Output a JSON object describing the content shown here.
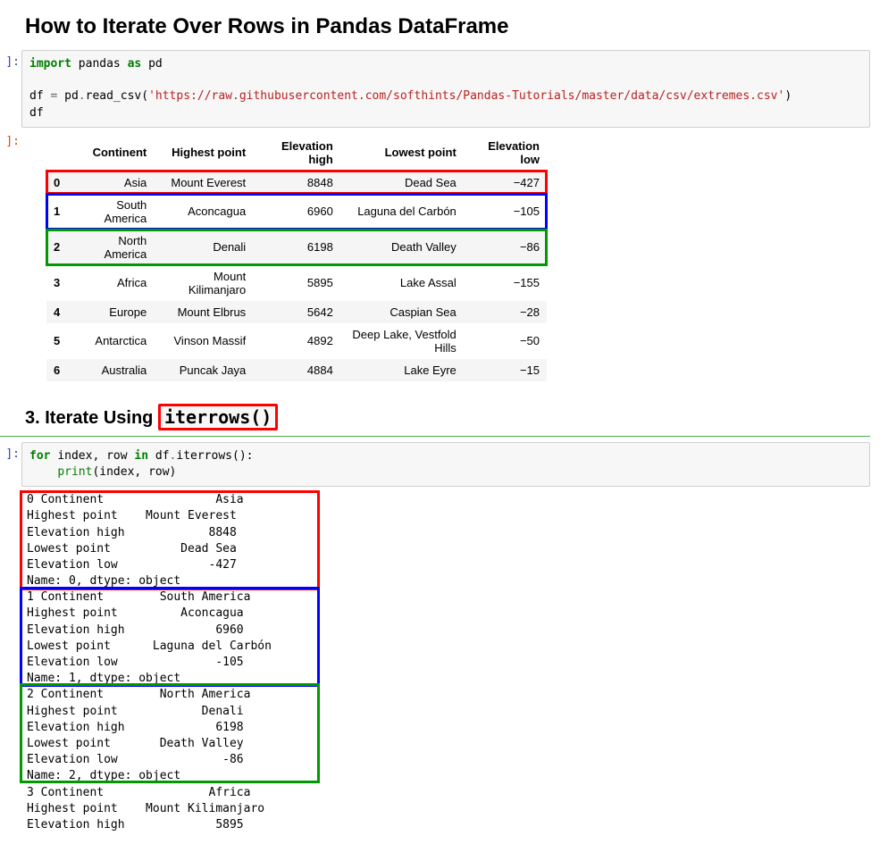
{
  "title": "How to Iterate Over Rows in Pandas DataFrame",
  "section2": {
    "prefix": "3. Iterate Using ",
    "code": "iterrows()"
  },
  "code1_tokens": [
    {
      "t": "import ",
      "c": "kw-import"
    },
    {
      "t": "pandas ",
      "c": ""
    },
    {
      "t": "as ",
      "c": "kw-as"
    },
    {
      "t": "pd",
      "c": ""
    },
    {
      "t": "\n\n",
      "c": ""
    },
    {
      "t": "df ",
      "c": ""
    },
    {
      "t": "= ",
      "c": "op"
    },
    {
      "t": "pd",
      "c": ""
    },
    {
      "t": ".",
      "c": "op"
    },
    {
      "t": "read_csv(",
      "c": ""
    },
    {
      "t": "'https://raw.githubusercontent.com/softhints/Pandas-Tutorials/master/data/csv/extremes.csv'",
      "c": "str"
    },
    {
      "t": ")",
      "c": ""
    },
    {
      "t": "\n",
      "c": ""
    },
    {
      "t": "df",
      "c": ""
    }
  ],
  "code2_tokens": [
    {
      "t": "for ",
      "c": "kw-for"
    },
    {
      "t": "index, row ",
      "c": ""
    },
    {
      "t": "in ",
      "c": "kw-in"
    },
    {
      "t": "df",
      "c": ""
    },
    {
      "t": ".",
      "c": "op"
    },
    {
      "t": "iterrows():",
      "c": ""
    },
    {
      "t": "\n",
      "c": ""
    },
    {
      "t": "    ",
      "c": ""
    },
    {
      "t": "print",
      "c": "func"
    },
    {
      "t": "(index, row)",
      "c": ""
    }
  ],
  "table": {
    "columns": [
      "Continent",
      "Highest point",
      "Elevation high",
      "Lowest point",
      "Elevation low"
    ],
    "rows": [
      {
        "idx": "0",
        "cells": [
          "Asia",
          "Mount Everest",
          "8848",
          "Dead Sea",
          "−427"
        ],
        "hl": "red"
      },
      {
        "idx": "1",
        "cells": [
          "South America",
          "Aconcagua",
          "6960",
          "Laguna del Carbón",
          "−105"
        ],
        "hl": "blue"
      },
      {
        "idx": "2",
        "cells": [
          "North America",
          "Denali",
          "6198",
          "Death Valley",
          "−86"
        ],
        "hl": "green"
      },
      {
        "idx": "3",
        "cells": [
          "Africa",
          "Mount Kilimanjaro",
          "5895",
          "Lake Assal",
          "−155"
        ],
        "hl": null
      },
      {
        "idx": "4",
        "cells": [
          "Europe",
          "Mount Elbrus",
          "5642",
          "Caspian Sea",
          "−28"
        ],
        "hl": null
      },
      {
        "idx": "5",
        "cells": [
          "Antarctica",
          "Vinson Massif",
          "4892",
          "Deep Lake, Vestfold Hills",
          "−50"
        ],
        "hl": null
      },
      {
        "idx": "6",
        "cells": [
          "Australia",
          "Puncak Jaya",
          "4884",
          "Lake Eyre",
          "−15"
        ],
        "hl": null
      }
    ]
  },
  "iter_output": [
    {
      "hl": "red",
      "lines": [
        "0 Continent                Asia",
        "Highest point    Mount Everest",
        "Elevation high            8848",
        "Lowest point          Dead Sea",
        "Elevation low             -427",
        "Name: 0, dtype: object"
      ]
    },
    {
      "hl": "blue",
      "lines": [
        "1 Continent        South America",
        "Highest point         Aconcagua",
        "Elevation high             6960",
        "Lowest point      Laguna del Carbón",
        "Elevation low              -105",
        "Name: 1, dtype: object"
      ]
    },
    {
      "hl": "green",
      "lines": [
        "2 Continent        North America",
        "Highest point            Denali",
        "Elevation high             6198",
        "Lowest point       Death Valley",
        "Elevation low               -86",
        "Name: 2, dtype: object"
      ]
    },
    {
      "hl": null,
      "lines": [
        "3 Continent               Africa",
        "Highest point    Mount Kilimanjaro",
        "Elevation high             5895"
      ]
    }
  ],
  "hl_colors": {
    "red": "#ff0000",
    "blue": "#0000ff",
    "green": "#009900"
  },
  "output_box_width": 330
}
